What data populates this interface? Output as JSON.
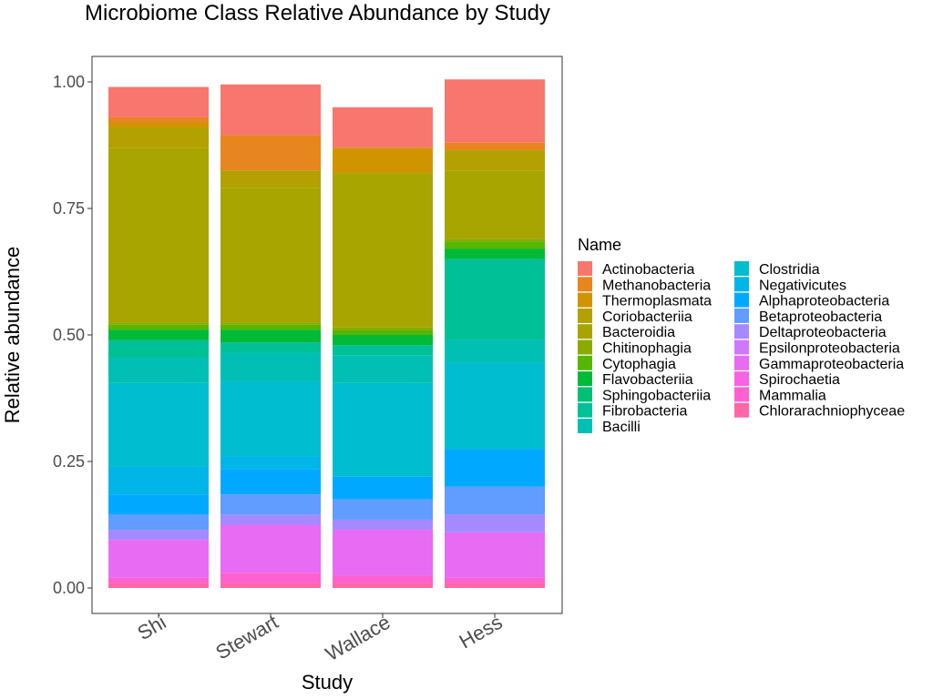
{
  "chart_data": {
    "type": "bar",
    "stacked": true,
    "title": "Microbiome Class Relative Abundance by Study",
    "xlabel": "Study",
    "ylabel": "Relative abundance",
    "ylim": [
      0,
      1
    ],
    "yticks": [
      "0.00",
      "0.25",
      "0.50",
      "0.75",
      "1.00"
    ],
    "grid": false,
    "legend_title": "Name",
    "legend_position": "right",
    "categories": [
      "Shi",
      "Stewart",
      "Wallace",
      "Hess"
    ],
    "series": [
      {
        "name": "Actinobacteria",
        "color": "#F8766D",
        "values": [
          0.06,
          0.1,
          0.08,
          0.125
        ]
      },
      {
        "name": "Methanobacteria",
        "color": "#E7851E",
        "values": [
          0.01,
          0.07,
          0.0,
          0.015
        ]
      },
      {
        "name": "Thermoplasmata",
        "color": "#D09400",
        "values": [
          0.01,
          0.0,
          0.05,
          0.0
        ]
      },
      {
        "name": "Coriobacteriia",
        "color": "#B2A100",
        "values": [
          0.04,
          0.035,
          0.0,
          0.04
        ]
      },
      {
        "name": "Bacteroidia",
        "color": "#A8A400",
        "values": [
          0.345,
          0.265,
          0.305,
          0.135
        ]
      },
      {
        "name": "Chitinophagia",
        "color": "#8BAB00",
        "values": [
          0.005,
          0.005,
          0.005,
          0.005
        ]
      },
      {
        "name": "Cytophagia",
        "color": "#55B700",
        "values": [
          0.01,
          0.01,
          0.01,
          0.015
        ]
      },
      {
        "name": "Flavobacteriia",
        "color": "#00BA38",
        "values": [
          0.02,
          0.025,
          0.02,
          0.02
        ]
      },
      {
        "name": "Sphingobacteriia",
        "color": "#00BF74",
        "values": [
          0.0,
          0.0,
          0.0,
          0.0
        ]
      },
      {
        "name": "Fibrobacteria",
        "color": "#00C097",
        "values": [
          0.035,
          0.02,
          0.02,
          0.16
        ]
      },
      {
        "name": "Bacilli",
        "color": "#00C0B5",
        "values": [
          0.05,
          0.055,
          0.055,
          0.045
        ]
      },
      {
        "name": "Clostridia",
        "color": "#00BDD0",
        "values": [
          0.165,
          0.15,
          0.185,
          0.17
        ]
      },
      {
        "name": "Negativicutes",
        "color": "#00B5E7",
        "values": [
          0.055,
          0.025,
          0.0,
          0.0
        ]
      },
      {
        "name": "Alphaproteobacteria",
        "color": "#00A9FF",
        "values": [
          0.04,
          0.05,
          0.045,
          0.075
        ]
      },
      {
        "name": "Betaproteobacteria",
        "color": "#619CFF",
        "values": [
          0.03,
          0.04,
          0.04,
          0.055
        ]
      },
      {
        "name": "Deltaproteobacteria",
        "color": "#A58AFF",
        "values": [
          0.02,
          0.02,
          0.02,
          0.035
        ]
      },
      {
        "name": "Epsilonproteobacteria",
        "color": "#CF78FF",
        "values": [
          0.0,
          0.0,
          0.0,
          0.0
        ]
      },
      {
        "name": "Gammaproteobacteria",
        "color": "#E76BF3",
        "values": [
          0.075,
          0.095,
          0.09,
          0.09
        ]
      },
      {
        "name": "Spirochaetia",
        "color": "#F564E3",
        "values": [
          0.0,
          0.0,
          0.0,
          0.0
        ]
      },
      {
        "name": "Mammalia",
        "color": "#FD61D1",
        "values": [
          0.01,
          0.02,
          0.015,
          0.01
        ]
      },
      {
        "name": "Chlorarachniophyceae",
        "color": "#FF67A4",
        "values": [
          0.01,
          0.01,
          0.01,
          0.01
        ]
      }
    ]
  }
}
